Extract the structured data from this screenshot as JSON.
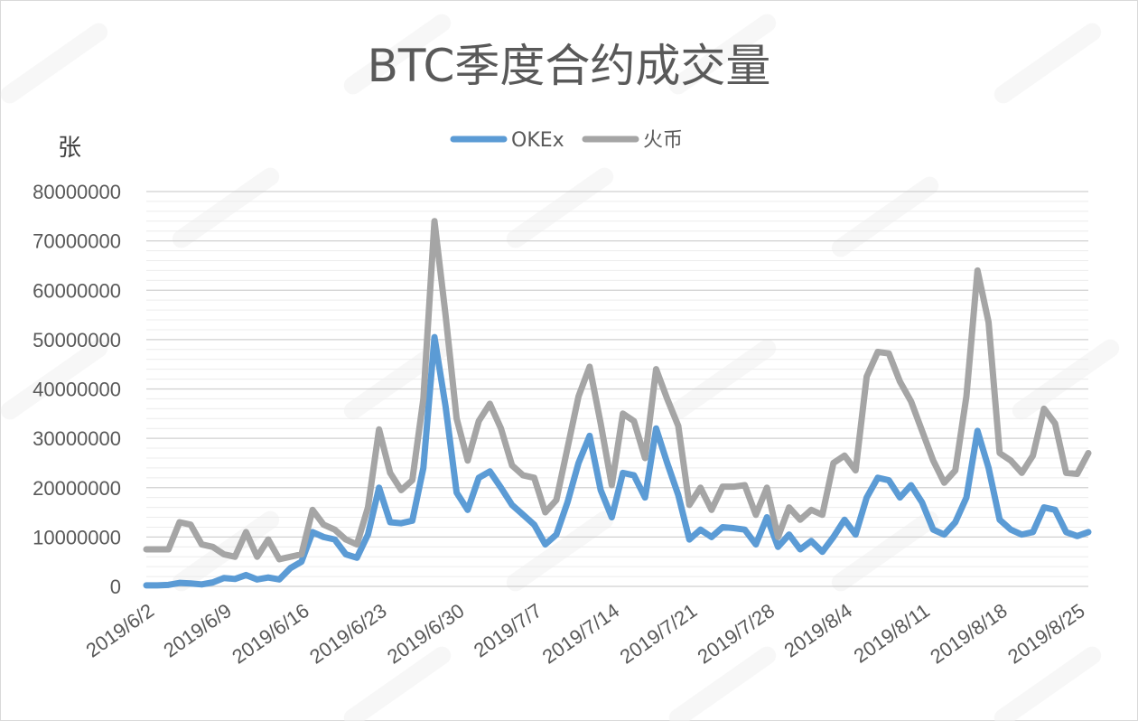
{
  "chart_data": {
    "type": "line",
    "title": "BTC季度合约成交量",
    "ylabel": "张",
    "xlabel": "",
    "ylim": [
      0,
      80000000
    ],
    "yticks": [
      0,
      10000000,
      20000000,
      30000000,
      40000000,
      50000000,
      60000000,
      70000000,
      80000000
    ],
    "grid": true,
    "legend_position": "top-center",
    "x_tick_labels": [
      "2019/6/2",
      "2019/6/9",
      "2019/6/16",
      "2019/6/23",
      "2019/6/30",
      "2019/7/7",
      "2019/7/14",
      "2019/7/21",
      "2019/7/28",
      "2019/8/4",
      "2019/8/11",
      "2019/8/18",
      "2019/8/25"
    ],
    "x_start": "2019/6/2",
    "x_end": "2019/8/26",
    "series": [
      {
        "name": "OKEx",
        "color": "#5b9bd5",
        "values": [
          200000,
          200000,
          300000,
          700000,
          600000,
          400000,
          800000,
          1700000,
          1500000,
          2300000,
          1400000,
          1800000,
          1400000,
          3700000,
          5000000,
          11000000,
          10000000,
          9500000,
          6500000,
          5800000,
          10500000,
          20000000,
          13000000,
          12800000,
          13300000,
          24000000,
          50500000,
          36500000,
          19000000,
          15500000,
          22000000,
          23300000,
          20000000,
          16500000,
          14500000,
          12500000,
          8500000,
          10500000,
          17000000,
          25000000,
          30500000,
          19500000,
          14000000,
          23000000,
          22500000,
          18000000,
          32000000,
          25000000,
          18500000,
          9500000,
          11500000,
          10000000,
          12000000,
          11800000,
          11500000,
          8500000,
          14000000,
          8000000,
          10500000,
          7500000,
          9200000,
          7000000,
          10000000,
          13500000,
          10500000,
          18000000,
          22000000,
          21500000,
          18000000,
          20500000,
          17000000,
          11500000,
          10500000,
          13000000,
          18000000,
          31500000,
          24000000,
          13500000,
          11500000,
          10500000,
          11000000,
          16000000,
          15500000,
          11000000,
          10200000,
          11000000
        ]
      },
      {
        "name": "火币",
        "color": "#a5a5a5",
        "values": [
          7500000,
          7500000,
          7500000,
          13000000,
          12500000,
          8500000,
          8000000,
          6500000,
          6000000,
          11000000,
          6000000,
          9500000,
          5500000,
          6000000,
          6500000,
          15500000,
          12500000,
          11500000,
          9500000,
          8500000,
          16000000,
          31800000,
          23000000,
          19500000,
          21500000,
          38000000,
          74000000,
          55000000,
          34000000,
          25500000,
          33500000,
          37000000,
          32000000,
          24500000,
          22500000,
          22000000,
          15000000,
          17500000,
          28000000,
          38500000,
          44500000,
          33000000,
          20500000,
          35000000,
          33500000,
          26000000,
          44000000,
          38000000,
          32500000,
          16500000,
          20000000,
          15500000,
          20200000,
          20200000,
          20500000,
          14500000,
          20000000,
          10000000,
          16000000,
          13500000,
          15500000,
          14500000,
          25000000,
          26500000,
          23500000,
          42500000,
          47500000,
          47200000,
          41500000,
          37500000,
          31500000,
          25500000,
          21000000,
          23500000,
          38500000,
          64000000,
          53500000,
          27000000,
          25500000,
          23000000,
          26500000,
          36000000,
          33000000,
          23000000,
          22800000,
          27000000
        ]
      }
    ]
  }
}
